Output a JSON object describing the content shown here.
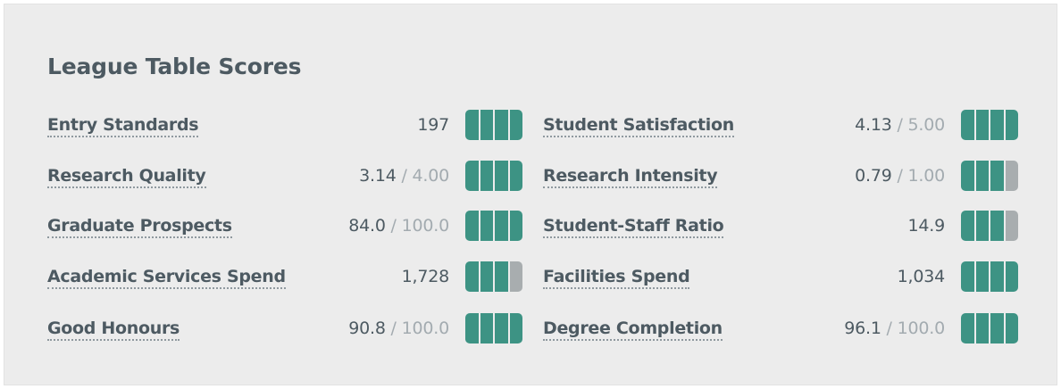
{
  "title": "League Table Scores",
  "colors": {
    "meter_filled": "#3d9384",
    "meter_empty": "#a8adaf",
    "text": "#4d5a62",
    "muted": "#a3abb0",
    "panel_bg": "#ececec"
  },
  "scores": {
    "left": [
      {
        "label": "Entry Standards",
        "value": "197",
        "max": "",
        "rating": 4,
        "rating_max": 4
      },
      {
        "label": "Research Quality",
        "value": "3.14",
        "max": "4.00",
        "rating": 4,
        "rating_max": 4
      },
      {
        "label": "Graduate Prospects",
        "value": "84.0",
        "max": "100.0",
        "rating": 4,
        "rating_max": 4
      },
      {
        "label": "Academic Services Spend",
        "value": "1,728",
        "max": "",
        "rating": 3,
        "rating_max": 4
      },
      {
        "label": "Good Honours",
        "value": "90.8",
        "max": "100.0",
        "rating": 4,
        "rating_max": 4
      }
    ],
    "right": [
      {
        "label": "Student Satisfaction",
        "value": "4.13",
        "max": "5.00",
        "rating": 4,
        "rating_max": 4
      },
      {
        "label": "Research Intensity",
        "value": "0.79",
        "max": "1.00",
        "rating": 3,
        "rating_max": 4
      },
      {
        "label": "Student-Staff Ratio",
        "value": "14.9",
        "max": "",
        "rating": 3,
        "rating_max": 4
      },
      {
        "label": "Facilities Spend",
        "value": "1,034",
        "max": "",
        "rating": 4,
        "rating_max": 4
      },
      {
        "label": "Degree Completion",
        "value": "96.1",
        "max": "100.0",
        "rating": 4,
        "rating_max": 4
      }
    ]
  }
}
